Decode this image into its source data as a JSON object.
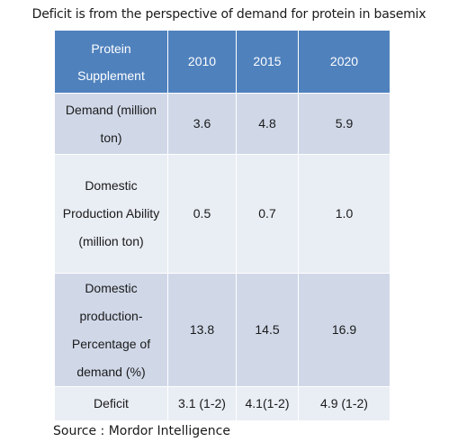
{
  "caption": "Deficit is from the perspective of demand for protein in basemix",
  "table": {
    "header": {
      "category": "Protein Supplement",
      "years": [
        "2010",
        "2015",
        "2020"
      ]
    },
    "rows": [
      {
        "label": "Demand (million ton)",
        "values": [
          "3.6",
          "4.8",
          "5.9"
        ]
      },
      {
        "label": "Domestic Production Ability (million ton)",
        "values": [
          "0.5",
          "0.7",
          "1.0"
        ]
      },
      {
        "label": "Domestic production- Percentage of demand (%)",
        "values": [
          "13.8",
          "14.5",
          "16.9"
        ]
      },
      {
        "label": "Deficit",
        "values": [
          "3.1 (1-2)",
          "4.1(1-2)",
          "4.9 (1-2)"
        ]
      }
    ]
  },
  "source": "Source : Mordor Intelligence",
  "colors": {
    "header_bg": "#4f81bd",
    "row_dark": "#d0d8e8",
    "row_light": "#e9edf4"
  }
}
